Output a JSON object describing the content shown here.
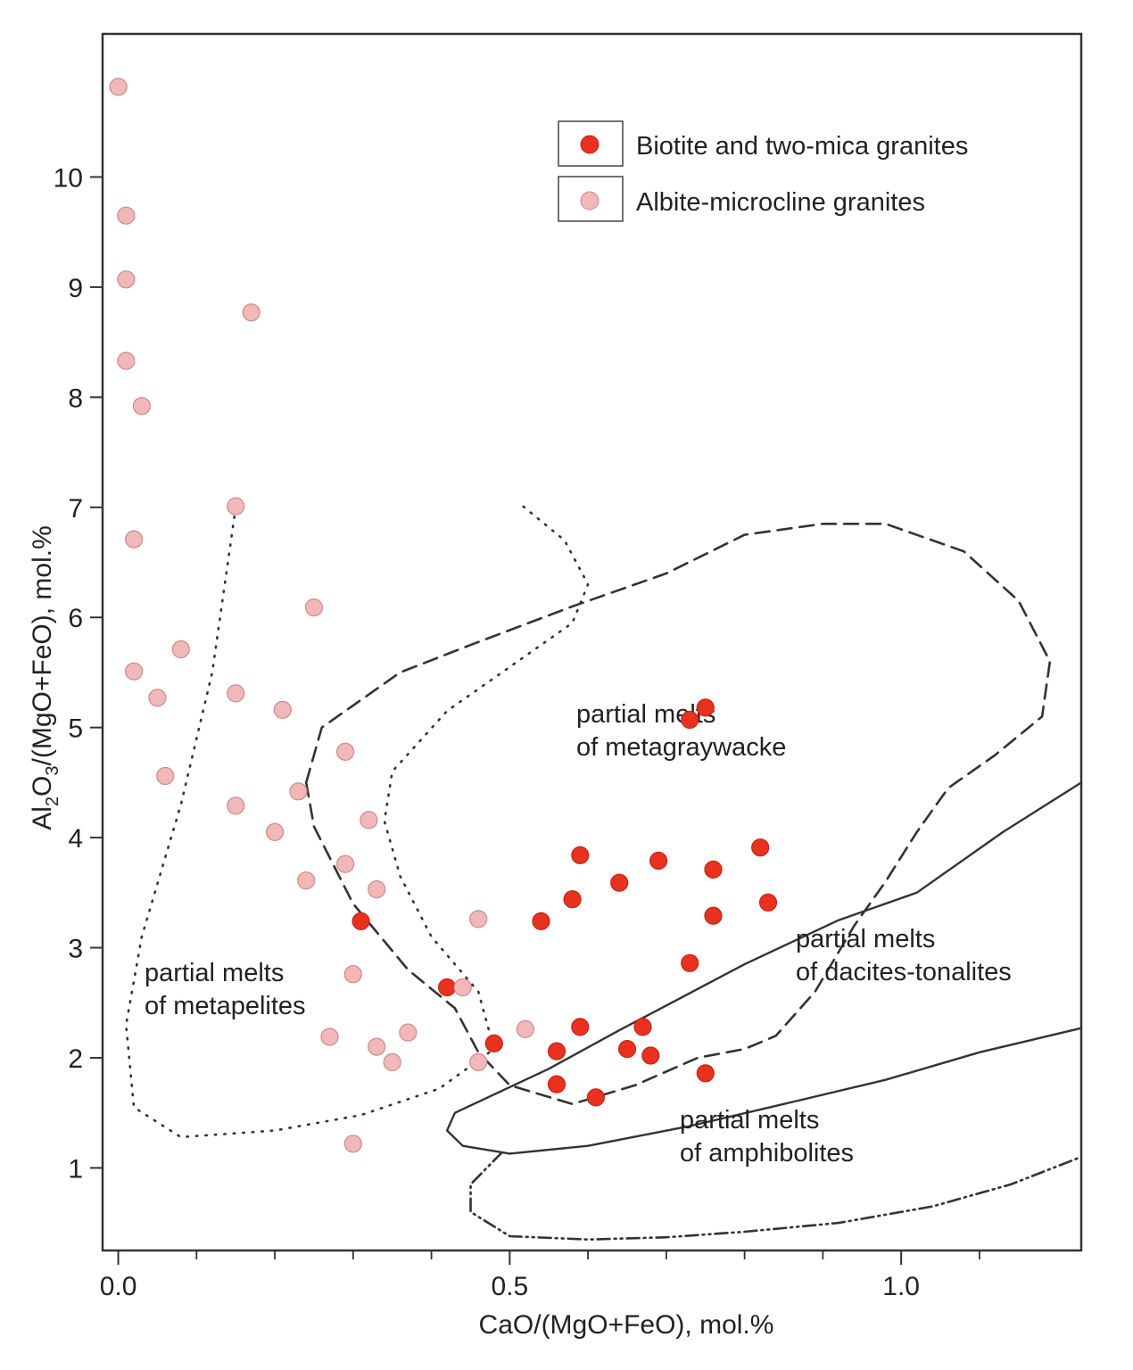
{
  "chart_data": {
    "type": "scatter",
    "xlabel": "CaO/(MgO+FeO), mol.%",
    "ylabel_parts": [
      "Al",
      "2",
      "O",
      "3",
      "/(MgO+FeO), mol.%"
    ],
    "xlim": [
      -0.02,
      1.23
    ],
    "ylim": [
      0.25,
      11.3
    ],
    "x_ticks": [
      0.0,
      0.5,
      1.0
    ],
    "x_tick_labels": [
      "0.0",
      "0.5",
      "1.0"
    ],
    "x_minor_ticks": [
      0.1,
      0.2,
      0.3,
      0.4,
      0.6,
      0.7,
      0.8,
      0.9,
      1.1
    ],
    "y_ticks": [
      1,
      2,
      3,
      4,
      5,
      6,
      7,
      8,
      9,
      10
    ],
    "y_tick_labels": [
      "1",
      "2",
      "3",
      "4",
      "5",
      "6",
      "7",
      "8",
      "9",
      "10"
    ],
    "legend_position": "top-right",
    "colors": {
      "biotite": "#e8311f",
      "albite": "#f2b8b8",
      "albite_stroke": "#c98c8c",
      "frame": "#333333",
      "lines": "#333333"
    },
    "series": [
      {
        "name": "Biotite and two-mica granites",
        "key": "biotite",
        "points": [
          [
            0.73,
            5.07
          ],
          [
            0.75,
            5.18
          ],
          [
            0.59,
            3.84
          ],
          [
            0.69,
            3.79
          ],
          [
            0.82,
            3.91
          ],
          [
            0.76,
            3.71
          ],
          [
            0.64,
            3.59
          ],
          [
            0.58,
            3.44
          ],
          [
            0.83,
            3.41
          ],
          [
            0.76,
            3.29
          ],
          [
            0.31,
            3.24
          ],
          [
            0.54,
            3.24
          ],
          [
            0.73,
            2.86
          ],
          [
            0.42,
            2.64
          ],
          [
            0.59,
            2.28
          ],
          [
            0.67,
            2.28
          ],
          [
            0.48,
            2.13
          ],
          [
            0.56,
            2.06
          ],
          [
            0.65,
            2.08
          ],
          [
            0.68,
            2.02
          ],
          [
            0.56,
            1.76
          ],
          [
            0.75,
            1.86
          ],
          [
            0.61,
            1.64
          ]
        ]
      },
      {
        "name": "Albite-microcline granites",
        "key": "albite",
        "points": [
          [
            0.0,
            10.82
          ],
          [
            0.01,
            9.65
          ],
          [
            0.01,
            9.07
          ],
          [
            0.01,
            8.33
          ],
          [
            0.17,
            8.77
          ],
          [
            0.03,
            7.92
          ],
          [
            0.15,
            7.01
          ],
          [
            0.02,
            6.71
          ],
          [
            0.25,
            6.09
          ],
          [
            0.08,
            5.71
          ],
          [
            0.02,
            5.51
          ],
          [
            0.05,
            5.27
          ],
          [
            0.15,
            5.31
          ],
          [
            0.21,
            5.16
          ],
          [
            0.29,
            4.78
          ],
          [
            0.06,
            4.56
          ],
          [
            0.23,
            4.42
          ],
          [
            0.15,
            4.29
          ],
          [
            0.32,
            4.16
          ],
          [
            0.2,
            4.05
          ],
          [
            0.29,
            3.76
          ],
          [
            0.24,
            3.61
          ],
          [
            0.33,
            3.53
          ],
          [
            0.46,
            3.26
          ],
          [
            0.3,
            2.76
          ],
          [
            0.44,
            2.64
          ],
          [
            0.27,
            2.19
          ],
          [
            0.37,
            2.23
          ],
          [
            0.52,
            2.26
          ],
          [
            0.33,
            2.1
          ],
          [
            0.35,
            1.96
          ],
          [
            0.46,
            1.96
          ],
          [
            0.3,
            1.22
          ]
        ]
      }
    ],
    "fields": [
      {
        "name": "partial melts of metapelites",
        "lines": [
          "partial melts",
          "of metapelites"
        ],
        "style": "dotted",
        "path": [
          [
            0.15,
            7.0
          ],
          [
            0.12,
            5.5
          ],
          [
            0.08,
            4.3
          ],
          [
            0.03,
            3.1
          ],
          [
            0.01,
            2.3
          ],
          [
            0.02,
            1.55
          ],
          [
            0.08,
            1.28
          ],
          [
            0.2,
            1.34
          ],
          [
            0.31,
            1.48
          ],
          [
            0.41,
            1.72
          ],
          [
            0.48,
            2.08
          ],
          [
            0.46,
            2.6
          ],
          [
            0.4,
            3.1
          ],
          [
            0.36,
            3.65
          ],
          [
            0.34,
            4.15
          ],
          [
            0.35,
            4.6
          ],
          [
            0.42,
            5.15
          ],
          [
            0.5,
            5.55
          ],
          [
            0.58,
            5.95
          ],
          [
            0.6,
            6.3
          ],
          [
            0.57,
            6.7
          ],
          [
            0.51,
            7.05
          ]
        ],
        "closed": false
      },
      {
        "name": "partial melts of metagraywacke",
        "lines": [
          "partial melts",
          "of metagraywacke"
        ],
        "style": "dashed",
        "path": [
          [
            0.24,
            4.5
          ],
          [
            0.26,
            5.0
          ],
          [
            0.3,
            5.2
          ],
          [
            0.36,
            5.5
          ],
          [
            0.45,
            5.75
          ],
          [
            0.58,
            6.1
          ],
          [
            0.7,
            6.4
          ],
          [
            0.8,
            6.75
          ],
          [
            0.9,
            6.85
          ],
          [
            0.98,
            6.85
          ],
          [
            1.08,
            6.6
          ],
          [
            1.15,
            6.15
          ],
          [
            1.19,
            5.6
          ],
          [
            1.18,
            5.1
          ],
          [
            1.12,
            4.75
          ],
          [
            1.06,
            4.45
          ],
          [
            1.02,
            4.05
          ],
          [
            0.98,
            3.6
          ],
          [
            0.94,
            3.2
          ],
          [
            0.89,
            2.6
          ],
          [
            0.84,
            2.2
          ],
          [
            0.8,
            2.08
          ],
          [
            0.74,
            2.0
          ],
          [
            0.66,
            1.75
          ],
          [
            0.58,
            1.58
          ],
          [
            0.5,
            1.75
          ],
          [
            0.46,
            2.05
          ],
          [
            0.43,
            2.45
          ],
          [
            0.37,
            2.8
          ],
          [
            0.3,
            3.4
          ],
          [
            0.25,
            4.1
          ],
          [
            0.24,
            4.5
          ]
        ],
        "closed": false
      },
      {
        "name": "partial melts of dacites-tonalites",
        "lines": [
          "partial melts",
          "of dacites-tonalites"
        ],
        "style": "solid",
        "path": [
          [
            1.23,
            4.5
          ],
          [
            1.13,
            4.05
          ],
          [
            1.02,
            3.5
          ],
          [
            0.92,
            3.25
          ],
          [
            0.8,
            2.85
          ],
          [
            0.64,
            2.25
          ],
          [
            0.55,
            1.9
          ],
          [
            0.43,
            1.5
          ],
          [
            0.42,
            1.34
          ],
          [
            0.44,
            1.2
          ],
          [
            0.5,
            1.13
          ],
          [
            0.6,
            1.2
          ],
          [
            0.73,
            1.38
          ],
          [
            0.85,
            1.58
          ],
          [
            0.98,
            1.8
          ],
          [
            1.1,
            2.05
          ],
          [
            1.23,
            2.27
          ]
        ],
        "closed": false
      },
      {
        "name": "partial melts of amphibolites",
        "lines": [
          "partial melts",
          "of amphibolites"
        ],
        "style": "dashdot",
        "path": [
          [
            0.49,
            1.14
          ],
          [
            0.45,
            0.85
          ],
          [
            0.45,
            0.6
          ],
          [
            0.5,
            0.38
          ],
          [
            0.6,
            0.35
          ],
          [
            0.7,
            0.37
          ],
          [
            0.8,
            0.42
          ],
          [
            0.92,
            0.5
          ],
          [
            1.04,
            0.65
          ],
          [
            1.14,
            0.85
          ],
          [
            1.23,
            1.1
          ]
        ],
        "closed": false
      }
    ]
  }
}
